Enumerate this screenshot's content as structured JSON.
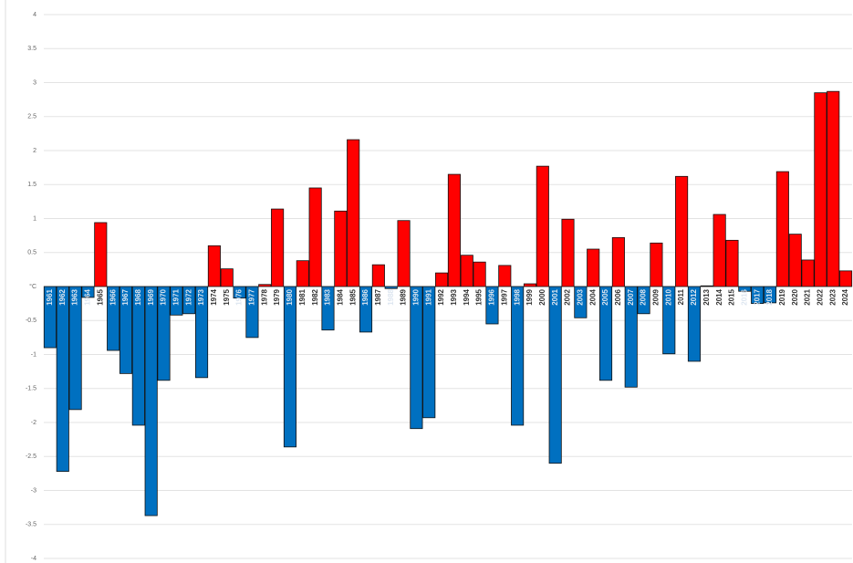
{
  "chart_data": {
    "type": "bar",
    "categories": [
      "1961",
      "1962",
      "1963",
      "1964",
      "1965",
      "1966",
      "1967",
      "1968",
      "1969",
      "1970",
      "1971",
      "1972",
      "1973",
      "1974",
      "1975",
      "1976",
      "1977",
      "1978",
      "1979",
      "1980",
      "1981",
      "1982",
      "1983",
      "1984",
      "1985",
      "1986",
      "1987",
      "1988",
      "1989",
      "1990",
      "1991",
      "1992",
      "1993",
      "1994",
      "1995",
      "1996",
      "1997",
      "1998",
      "1999",
      "2000",
      "2001",
      "2002",
      "2003",
      "2004",
      "2005",
      "2006",
      "2007",
      "2008",
      "2009",
      "2010",
      "2011",
      "2012",
      "2013",
      "2014",
      "2015",
      "2016",
      "2017",
      "2018",
      "2019",
      "2020",
      "2021",
      "2022",
      "2023",
      "2024"
    ],
    "values": [
      -0.9,
      -2.72,
      -1.81,
      -0.16,
      0.94,
      -0.94,
      -1.28,
      -2.04,
      -3.37,
      -1.38,
      -0.42,
      -0.4,
      -1.34,
      0.6,
      0.26,
      -0.17,
      -0.75,
      0.03,
      1.14,
      -2.36,
      0.38,
      1.45,
      -0.64,
      1.11,
      2.16,
      -0.67,
      0.32,
      -0.03,
      0.97,
      -2.09,
      -1.93,
      0.2,
      1.65,
      0.46,
      0.36,
      -0.55,
      0.31,
      -2.04,
      0.04,
      1.77,
      -2.6,
      0.99,
      -0.46,
      0.55,
      -1.38,
      0.72,
      -1.48,
      -0.4,
      0.64,
      -0.99,
      1.62,
      -1.1,
      0.01,
      1.06,
      0.68,
      -0.07,
      -0.25,
      -0.24,
      1.69,
      0.77,
      0.39,
      2.85,
      2.87,
      0.23
    ],
    "color_positive": "#ff0000",
    "color_negative": "#0070c0",
    "ylim": [
      -4,
      4
    ],
    "yticks": [
      4,
      3.5,
      3,
      2.5,
      2,
      1.5,
      1,
      0.5,
      {
        "value": 0,
        "label": "°C"
      },
      -0.5,
      -1,
      -1.5,
      -2,
      -2.5,
      -3,
      -3.5,
      -4
    ],
    "grid": true
  }
}
